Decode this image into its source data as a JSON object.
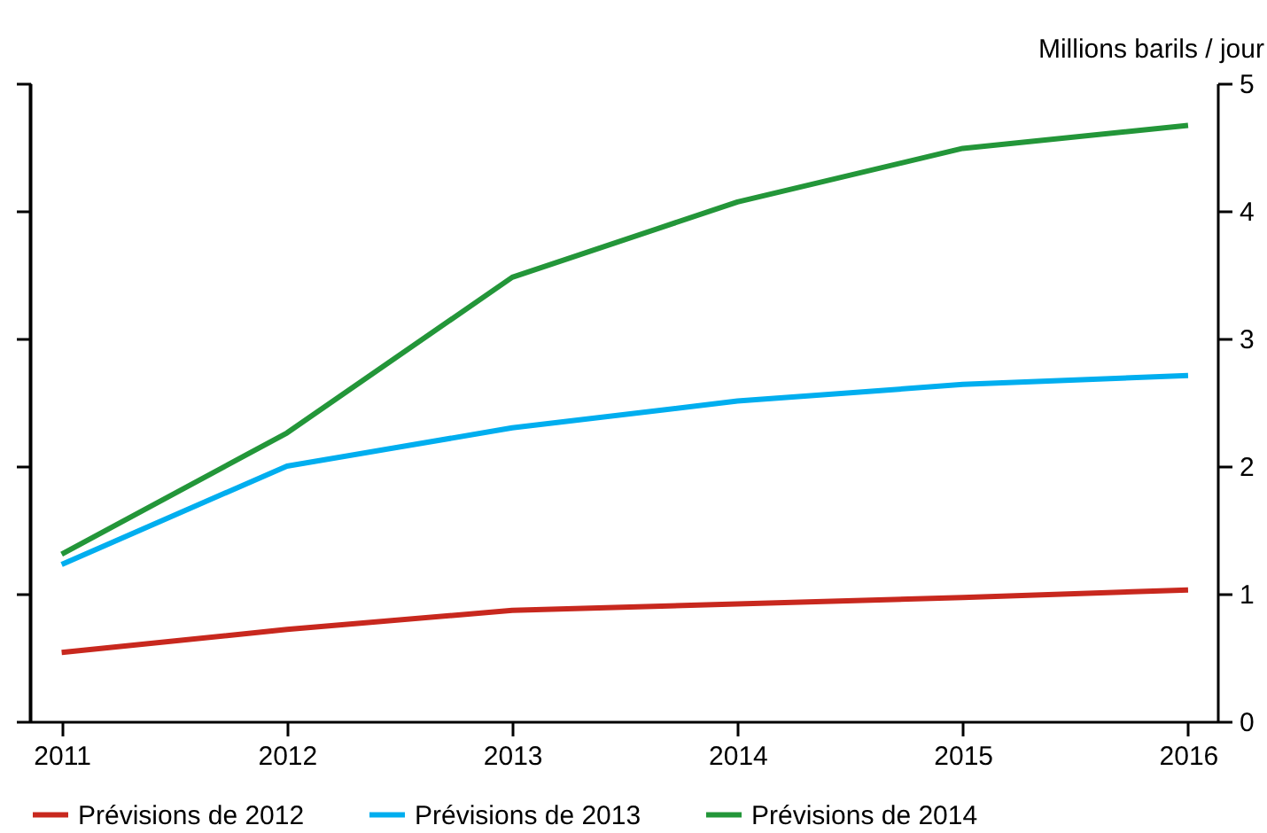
{
  "chart_data": {
    "type": "line",
    "ylabel": "Millions barils / jour",
    "x": [
      2011,
      2012,
      2013,
      2014,
      2015,
      2016
    ],
    "xlim": [
      2010.86,
      2016.13
    ],
    "xticks": [
      2011,
      2012,
      2013,
      2014,
      2015,
      2016
    ],
    "ylim": [
      0,
      5
    ],
    "yticks": [
      0,
      1,
      2,
      3,
      4,
      5
    ],
    "grid": false,
    "legend": "bottom",
    "line_style": "solid",
    "marker": "none",
    "series": [
      {
        "name": "Prévisions de 2012",
        "color": "#c8281e",
        "values": [
          0.54,
          0.72,
          0.87,
          0.92,
          0.97,
          1.03
        ]
      },
      {
        "name": "Prévisions de 2013",
        "color": "#00aeef",
        "values": [
          1.23,
          2.0,
          2.3,
          2.51,
          2.64,
          2.71
        ]
      },
      {
        "name": "Prévisions de 2014",
        "color": "#239639",
        "values": [
          1.31,
          2.26,
          3.48,
          4.07,
          4.49,
          4.67
        ]
      }
    ]
  }
}
